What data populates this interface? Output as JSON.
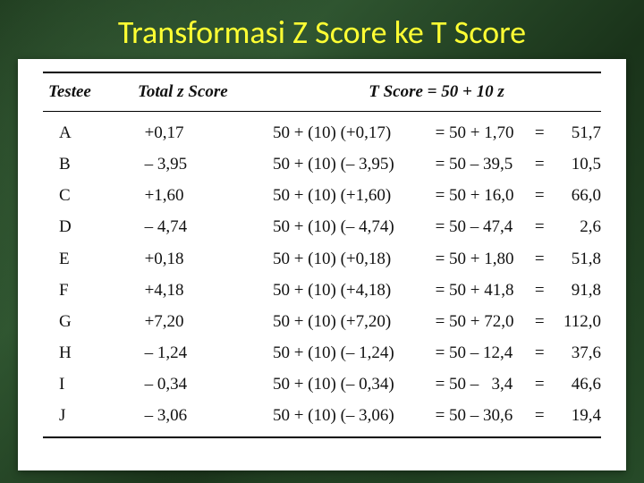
{
  "title": "Transformasi Z Score ke T Score",
  "headers": {
    "testee": "Testee",
    "z": "Total z Score",
    "t": "T Score = 50  +  10 z"
  },
  "rows": [
    {
      "testee": "A",
      "z": "+0,17",
      "expr": "50 + (10) (+0,17)",
      "mid": "= 50 + 1,70",
      "eq": "=",
      "res": "51,7"
    },
    {
      "testee": "B",
      "z": "– 3,95",
      "expr": "50 + (10) (– 3,95)",
      "mid": "= 50 – 39,5",
      "eq": "=",
      "res": "10,5"
    },
    {
      "testee": "C",
      "z": "+1,60",
      "expr": "50 + (10) (+1,60)",
      "mid": "= 50 + 16,0",
      "eq": "=",
      "res": "66,0"
    },
    {
      "testee": "D",
      "z": "– 4,74",
      "expr": "50 + (10) (– 4,74)",
      "mid": "= 50 – 47,4",
      "eq": "=",
      "res": "2,6"
    },
    {
      "testee": "E",
      "z": "+0,18",
      "expr": "50 + (10) (+0,18)",
      "mid": "= 50 + 1,80",
      "eq": "=",
      "res": "51,8"
    },
    {
      "testee": "F",
      "z": "+4,18",
      "expr": "50 + (10) (+4,18)",
      "mid": "= 50 + 41,8",
      "eq": "=",
      "res": "91,8"
    },
    {
      "testee": "G",
      "z": "+7,20",
      "expr": "50 + (10) (+7,20)",
      "mid": "= 50 + 72,0",
      "eq": "=",
      "res": "112,0"
    },
    {
      "testee": "H",
      "z": "– 1,24",
      "expr": "50 + (10) (– 1,24)",
      "mid": "= 50 – 12,4",
      "eq": "=",
      "res": "37,6"
    },
    {
      "testee": "I",
      "z": "– 0,34",
      "expr": "50 + (10) (– 0,34)",
      "mid": "= 50 –   3,4",
      "eq": "=",
      "res": "46,6"
    },
    {
      "testee": "J",
      "z": "– 3,06",
      "expr": "50 + (10) (– 3,06)",
      "mid": "= 50 – 30,6",
      "eq": "=",
      "res": "19,4"
    }
  ],
  "colors": {
    "title": "#ffff33",
    "paper_bg": "#ffffff",
    "text": "#111111",
    "rule": "#000000"
  }
}
